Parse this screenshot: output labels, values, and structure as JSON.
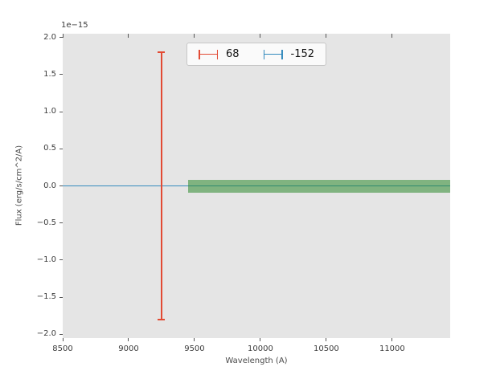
{
  "legend": {
    "entries": [
      {
        "label": "68",
        "color": "#E24A33"
      },
      {
        "label": "-152",
        "color": "#348ABD"
      }
    ]
  },
  "chart_data": {
    "type": "line",
    "title": "",
    "xlabel": "Wavelength (A)",
    "ylabel": "Flux (erg/s/cm^2/A)",
    "y_offset_text": "1e−15",
    "y_unit_scale": 1e-15,
    "xlim": [
      8500,
      11440
    ],
    "ylim_scaled": [
      -2.05,
      2.05
    ],
    "grid": false,
    "background_color": "#e5e5e5",
    "legend_location": "upper center",
    "xticks": [
      {
        "v": 8500,
        "label": "8500"
      },
      {
        "v": 9000,
        "label": "9000"
      },
      {
        "v": 9500,
        "label": "9500"
      },
      {
        "v": 10000,
        "label": "10000"
      },
      {
        "v": 10500,
        "label": "10500"
      },
      {
        "v": 11000,
        "label": "11000"
      }
    ],
    "yticks": [
      {
        "v": 2.0,
        "label": "2.0"
      },
      {
        "v": 1.5,
        "label": "1.5"
      },
      {
        "v": 1.0,
        "label": "1.0"
      },
      {
        "v": 0.5,
        "label": "0.5"
      },
      {
        "v": 0.0,
        "label": "0.0"
      },
      {
        "v": -0.5,
        "label": "−0.5"
      },
      {
        "v": -1.0,
        "label": "−1.0"
      },
      {
        "v": -1.5,
        "label": "−1.5"
      },
      {
        "v": -2.0,
        "label": "−2.0"
      }
    ],
    "series": [
      {
        "name": "-152",
        "kind": "hline",
        "color": "#348ABD",
        "y": 0.0,
        "x_start": 8500,
        "x_end": 11440,
        "linewidth": 1.5
      },
      {
        "name": "68",
        "kind": "errorbar",
        "color": "#E24A33",
        "x": 9250,
        "y": 0.0,
        "yerr": 1.8,
        "cap_width": 9
      },
      {
        "name": "uncertainty-band",
        "kind": "band",
        "color": "#2e8b2e",
        "alpha": 0.55,
        "x_start": 9450,
        "x_end": 11440,
        "y_low": -0.09,
        "y_high": 0.08
      }
    ]
  }
}
